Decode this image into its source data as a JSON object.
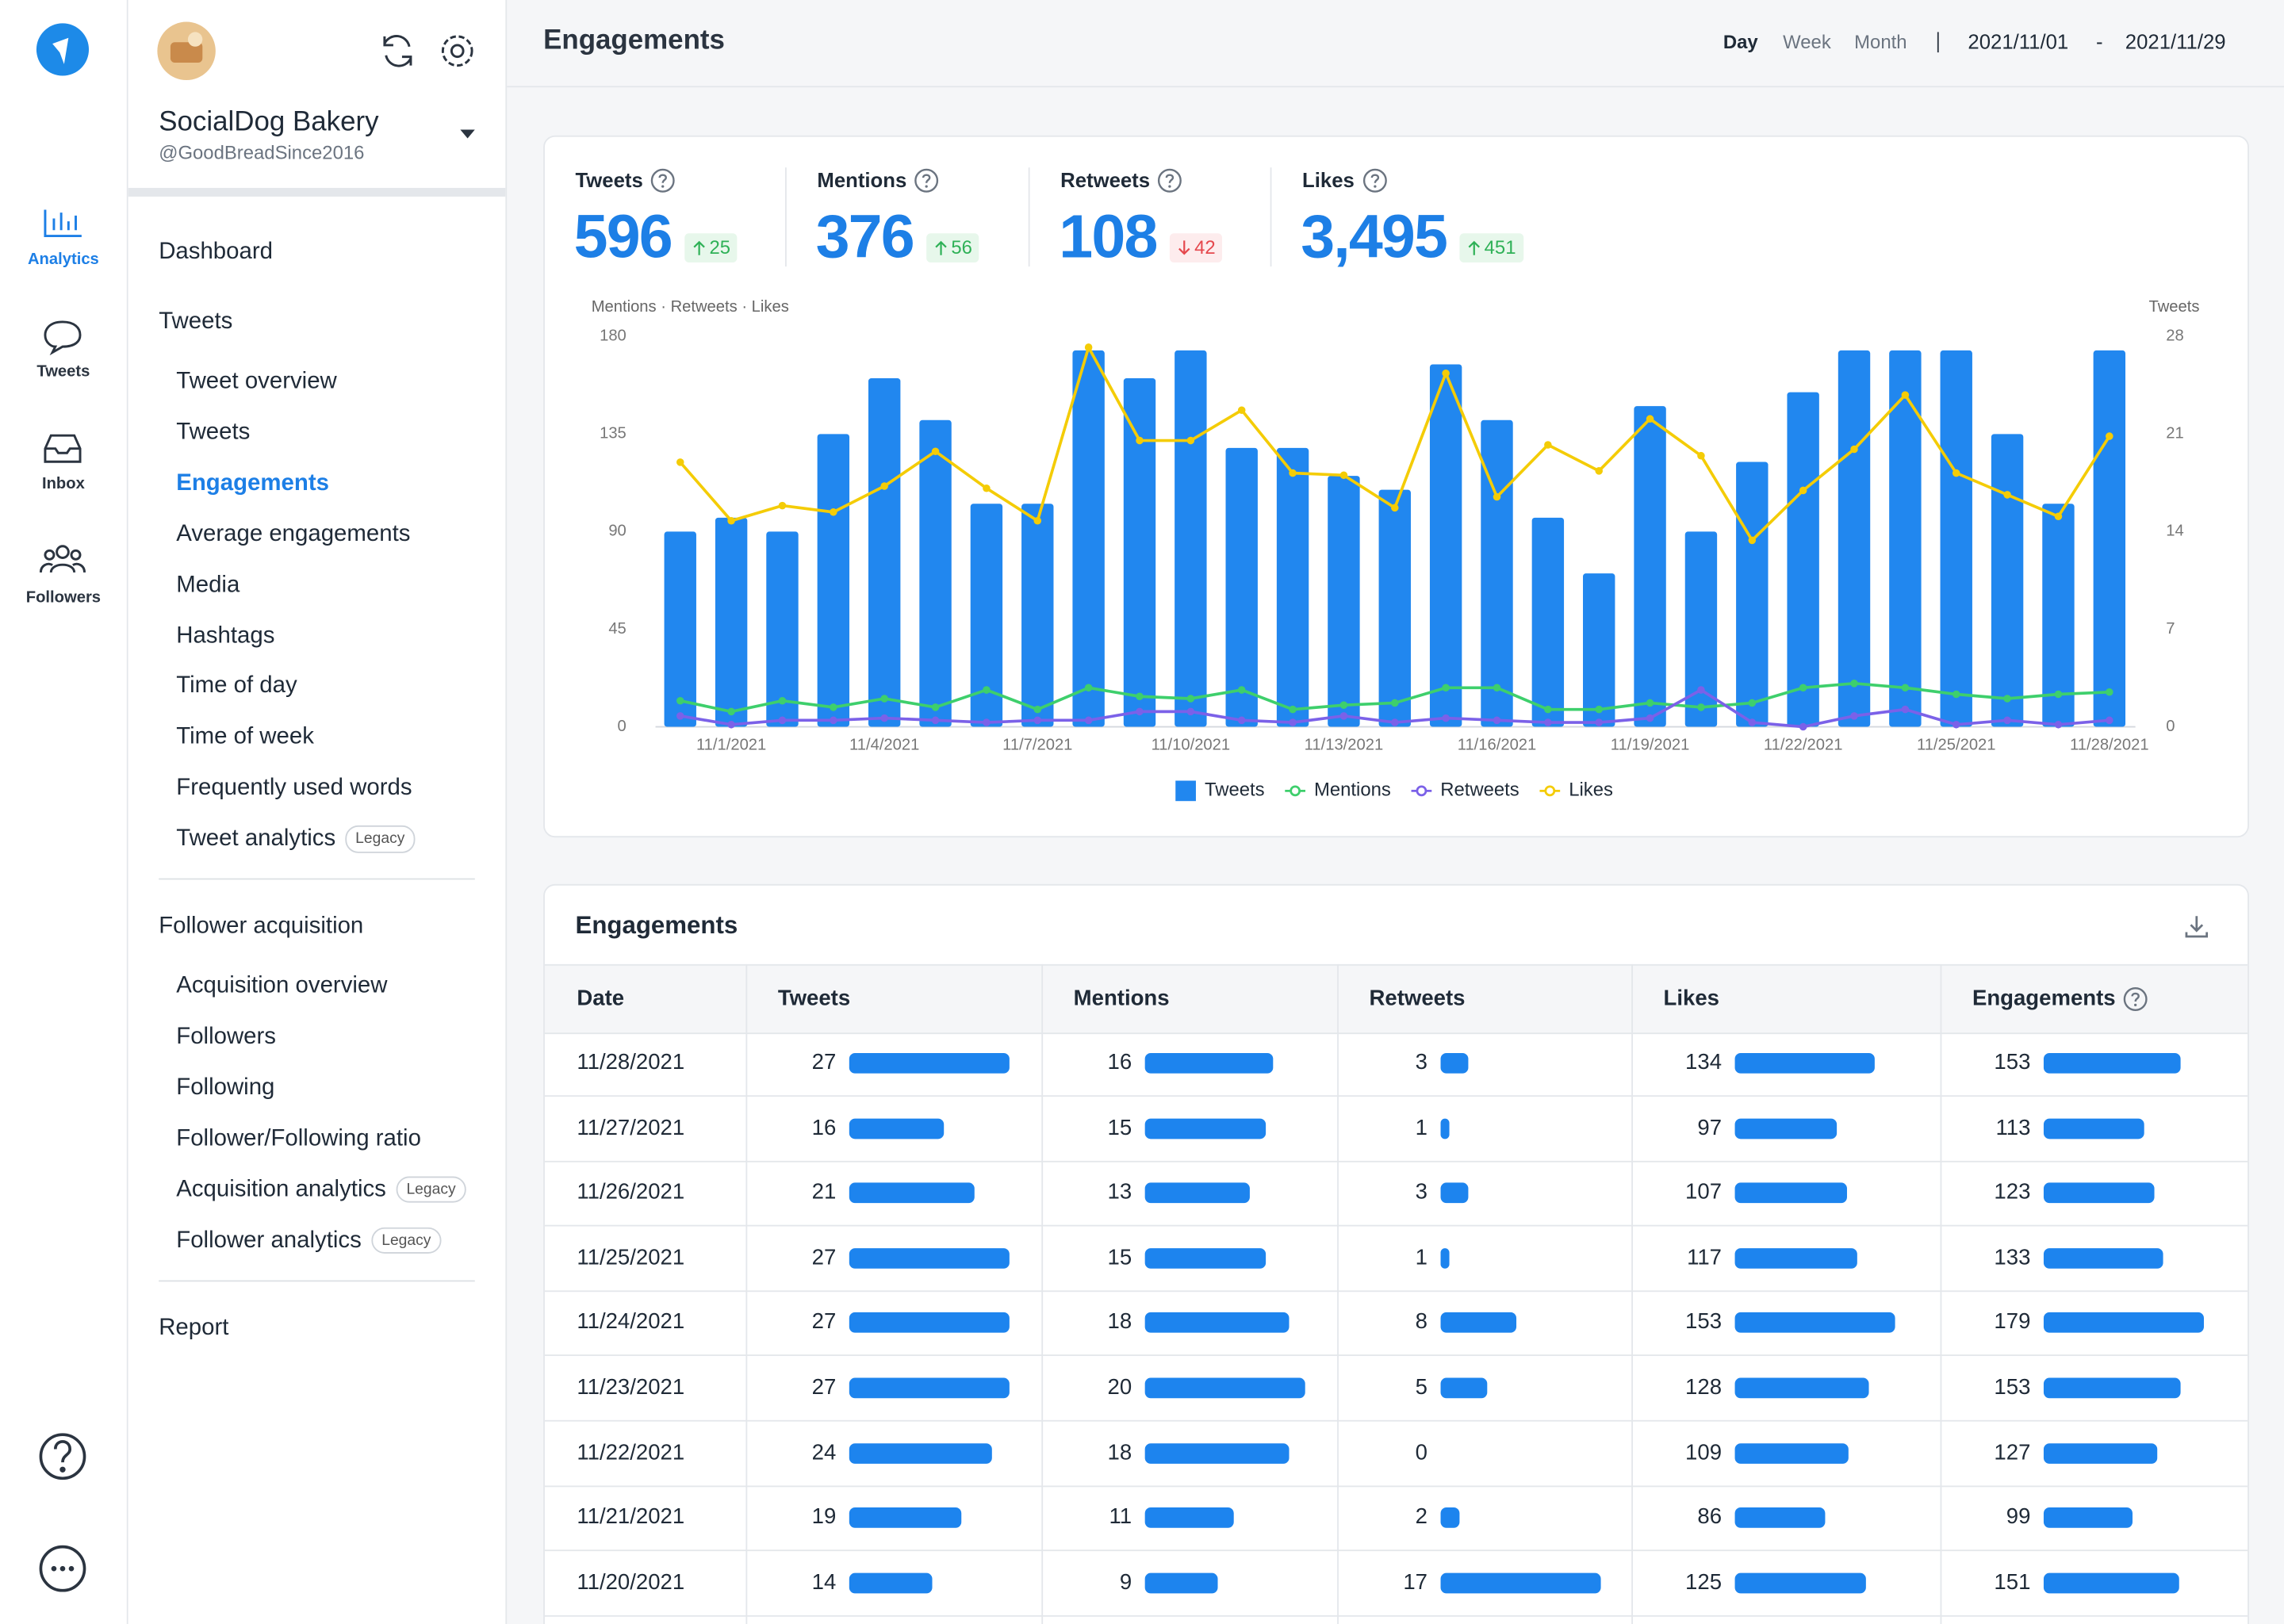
{
  "sidebar": {
    "nav": [
      {
        "label": "Analytics",
        "active": true
      },
      {
        "label": "Tweets"
      },
      {
        "label": "Inbox"
      },
      {
        "label": "Followers"
      }
    ],
    "account": {
      "name": "SocialDog Bakery",
      "handle": "@GoodBreadSince2016"
    },
    "menu": [
      {
        "label": "Dashboard"
      },
      {
        "label": "Tweets",
        "items": [
          {
            "label": "Tweet overview"
          },
          {
            "label": "Tweets"
          },
          {
            "label": "Engagements",
            "active": true
          },
          {
            "label": "Average engagements"
          },
          {
            "label": "Media"
          },
          {
            "label": "Hashtags"
          },
          {
            "label": "Time of day"
          },
          {
            "label": "Time of week"
          },
          {
            "label": "Frequently used words"
          },
          {
            "label": "Tweet analytics",
            "badge": "Legacy"
          }
        ]
      },
      {
        "label": "Follower acquisition",
        "items": [
          {
            "label": "Acquisition overview"
          },
          {
            "label": "Followers"
          },
          {
            "label": "Following"
          },
          {
            "label": "Follower/Following ratio"
          },
          {
            "label": "Acquisition analytics",
            "badge": "Legacy"
          },
          {
            "label": "Follower analytics",
            "badge": "Legacy"
          }
        ]
      },
      {
        "label": "Report"
      }
    ]
  },
  "header": {
    "title": "Engagements",
    "periods": [
      {
        "label": "Day",
        "active": true
      },
      {
        "label": "Week"
      },
      {
        "label": "Month"
      }
    ],
    "date_from": "2021/11/01",
    "date_separator": "-",
    "date_to": "2021/11/29"
  },
  "stats": [
    {
      "label": "Tweets",
      "value": "596",
      "change": "25",
      "direction": "up"
    },
    {
      "label": "Mentions",
      "value": "376",
      "change": "56",
      "direction": "up"
    },
    {
      "label": "Retweets",
      "value": "108",
      "change": "42",
      "direction": "down"
    },
    {
      "label": "Likes",
      "value": "3,495",
      "change": "451",
      "direction": "up"
    }
  ],
  "chart_data": {
    "type": "combo",
    "y_label": "Mentions · Retweets · Likes",
    "y2_label": "Tweets",
    "categories": [
      null,
      "11/1/2021",
      null,
      null,
      "11/4/2021",
      null,
      null,
      "11/7/2021",
      null,
      null,
      "11/10/2021",
      null,
      null,
      "11/13/2021",
      null,
      null,
      "11/16/2021",
      null,
      null,
      "11/19/2021",
      null,
      null,
      "11/22/2021",
      null,
      null,
      "11/25/2021",
      null,
      null,
      "11/28/2021"
    ],
    "series": [
      {
        "name": "Tweets",
        "type": "bar",
        "axis": "y2",
        "color": "#2187ef",
        "values": [
          14,
          15,
          14,
          21,
          25,
          22,
          16,
          16,
          27,
          25,
          27,
          20,
          20,
          18,
          17,
          26,
          22,
          15,
          11,
          23,
          14,
          19,
          24,
          27,
          27,
          27,
          21,
          16,
          27
        ]
      },
      {
        "name": "Mentions",
        "type": "line",
        "color": "#3ecf6c",
        "values": [
          12,
          7,
          12,
          9,
          13,
          9,
          17,
          8,
          18,
          14,
          13,
          17,
          8,
          10,
          11,
          18,
          18,
          8,
          8,
          11,
          9,
          11,
          18,
          20,
          18,
          15,
          13,
          15,
          16
        ]
      },
      {
        "name": "Retweets",
        "type": "line",
        "color": "#7b61e8",
        "values": [
          5,
          1,
          3,
          3,
          4,
          3,
          2,
          3,
          3,
          7,
          7,
          3,
          2,
          5,
          2,
          4,
          3,
          2,
          2,
          4,
          17,
          2,
          0,
          5,
          8,
          1,
          3,
          1,
          3
        ]
      },
      {
        "name": "Likes",
        "type": "line",
        "color": "#f4cc06",
        "values": [
          122,
          95,
          102,
          99,
          111,
          127,
          110,
          95,
          175,
          132,
          132,
          146,
          117,
          116,
          101,
          163,
          106,
          130,
          118,
          142,
          125,
          86,
          109,
          128,
          153,
          117,
          107,
          97,
          134
        ]
      }
    ],
    "ylim": [
      0,
      180
    ],
    "yticks": [
      0,
      45,
      90,
      135,
      180
    ],
    "y2lim": [
      0,
      28
    ],
    "y2ticks": [
      0,
      7,
      14,
      21,
      28
    ],
    "grid": false,
    "legend": "bottom"
  },
  "table": {
    "title": "Engagements",
    "columns": [
      "Date",
      "Tweets",
      "Mentions",
      "Retweets",
      "Likes",
      "Engagements"
    ],
    "rows": [
      [
        "11/28/2021",
        27,
        16,
        3,
        134,
        153
      ],
      [
        "11/27/2021",
        16,
        15,
        1,
        97,
        113
      ],
      [
        "11/26/2021",
        21,
        13,
        3,
        107,
        123
      ],
      [
        "11/25/2021",
        27,
        15,
        1,
        117,
        133
      ],
      [
        "11/24/2021",
        27,
        18,
        8,
        153,
        179
      ],
      [
        "11/23/2021",
        27,
        20,
        5,
        128,
        153
      ],
      [
        "11/22/2021",
        24,
        18,
        0,
        109,
        127
      ],
      [
        "11/21/2021",
        19,
        11,
        2,
        86,
        99
      ],
      [
        "11/20/2021",
        14,
        9,
        17,
        125,
        151
      ]
    ]
  }
}
